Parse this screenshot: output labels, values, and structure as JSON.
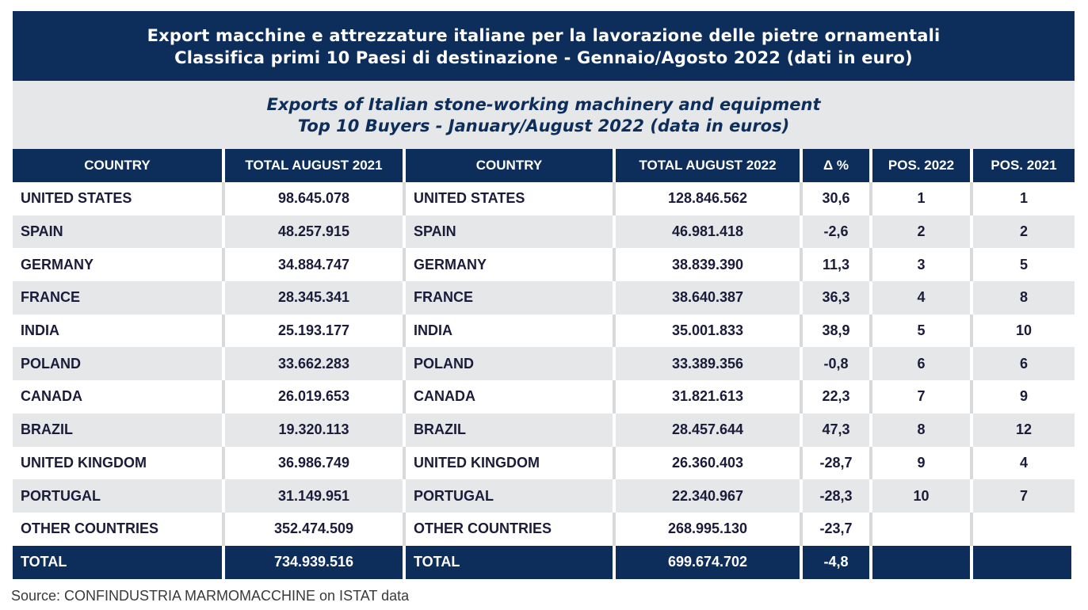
{
  "title": {
    "line1": "Export macchine e attrezzature italiane per la lavorazione delle pietre ornamentali",
    "line2": "Classifica primi 10 Paesi di destinazione - Gennaio/Agosto 2022 (dati in euro)"
  },
  "subtitle": {
    "line1": "Exports of Italian stone-working machinery and equipment",
    "line2": "Top 10 Buyers - January/August 2022 (data in euros)"
  },
  "table": {
    "headers": [
      "COUNTRY",
      "TOTAL AUGUST 2021",
      "COUNTRY",
      "TOTAL AUGUST 2022",
      "Δ %",
      "POS. 2022",
      "POS. 2021"
    ],
    "rows": [
      [
        "UNITED STATES",
        "98.645.078",
        "UNITED STATES",
        "128.846.562",
        "30,6",
        "1",
        "1"
      ],
      [
        "SPAIN",
        "48.257.915",
        "SPAIN",
        "46.981.418",
        "-2,6",
        "2",
        "2"
      ],
      [
        "GERMANY",
        "34.884.747",
        "GERMANY",
        "38.839.390",
        "11,3",
        "3",
        "5"
      ],
      [
        "FRANCE",
        "28.345.341",
        "FRANCE",
        "38.640.387",
        "36,3",
        "4",
        "8"
      ],
      [
        "INDIA",
        "25.193.177",
        "INDIA",
        "35.001.833",
        "38,9",
        "5",
        "10"
      ],
      [
        "POLAND",
        "33.662.283",
        "POLAND",
        "33.389.356",
        "-0,8",
        "6",
        "6"
      ],
      [
        "CANADA",
        "26.019.653",
        "CANADA",
        "31.821.613",
        "22,3",
        "7",
        "9"
      ],
      [
        "BRAZIL",
        "19.320.113",
        "BRAZIL",
        "28.457.644",
        "47,3",
        "8",
        "12"
      ],
      [
        "UNITED KINGDOM",
        "36.986.749",
        "UNITED KINGDOM",
        "26.360.403",
        "-28,7",
        "9",
        "4"
      ],
      [
        "PORTUGAL",
        "31.149.951",
        "PORTUGAL",
        "22.340.967",
        "-28,3",
        "10",
        "7"
      ],
      [
        "OTHER COUNTRIES",
        "352.474.509",
        "OTHER COUNTRIES",
        "268.995.130",
        "-23,7",
        "",
        ""
      ]
    ],
    "total": [
      "TOTAL",
      "734.939.516",
      "TOTAL",
      "699.674.702",
      "-4,8",
      "",
      ""
    ]
  },
  "source": "Source: CONFINDUSTRIA MARMOMACCHINE on ISTAT data",
  "colors": {
    "navy": "#0d2d5a",
    "stripe": "#e6e7e8"
  }
}
